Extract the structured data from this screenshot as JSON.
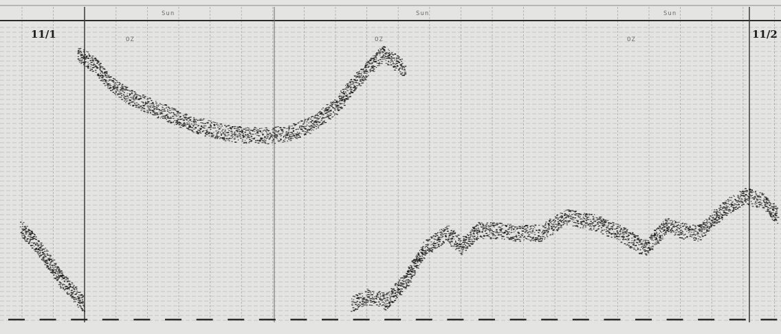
{
  "chart_data": {
    "type": "scatter",
    "title": "",
    "xlabel": "",
    "ylabel": "",
    "date_start": "11/1",
    "date_end": "11/2",
    "header_labels": [
      "Sun",
      "Sun",
      "Sun"
    ],
    "marker_labels": [
      "OZ",
      "OZ",
      "OZ"
    ],
    "grid": true,
    "color": "#1b1b1b",
    "xlim": [
      0,
      24
    ],
    "ylim": [
      0,
      100
    ],
    "series": [
      {
        "x": [
          1.8,
          2.3,
          2.8,
          3.5,
          4.5,
          5.5,
          6.5,
          7.2,
          8.0,
          8.6,
          9.2,
          10.0,
          10.5,
          11.3,
          11.5,
          12.2
        ],
        "y": [
          98,
          94,
          87,
          81,
          76,
          71,
          68,
          67,
          67,
          68,
          71,
          78,
          86,
          96,
          98,
          92
        ]
      },
      {
        "x": [
          0,
          0.6,
          1.3,
          2.0,
          10.5,
          11.0,
          11.6,
          12.2,
          12.8,
          13.5,
          14.0,
          14.5,
          15.0,
          15.8,
          16.5,
          17.3,
          17.8,
          18.2,
          19.0,
          19.8,
          20.5,
          20.9,
          21.5,
          22.4,
          23.0,
          23.6,
          24.0
        ],
        "y": [
          32,
          24,
          12,
          3,
          3,
          6,
          4,
          12,
          24,
          30,
          25,
          31,
          31,
          30,
          30,
          36,
          35,
          34,
          30,
          24,
          33,
          31,
          30,
          40,
          44,
          42,
          36
        ]
      }
    ]
  }
}
